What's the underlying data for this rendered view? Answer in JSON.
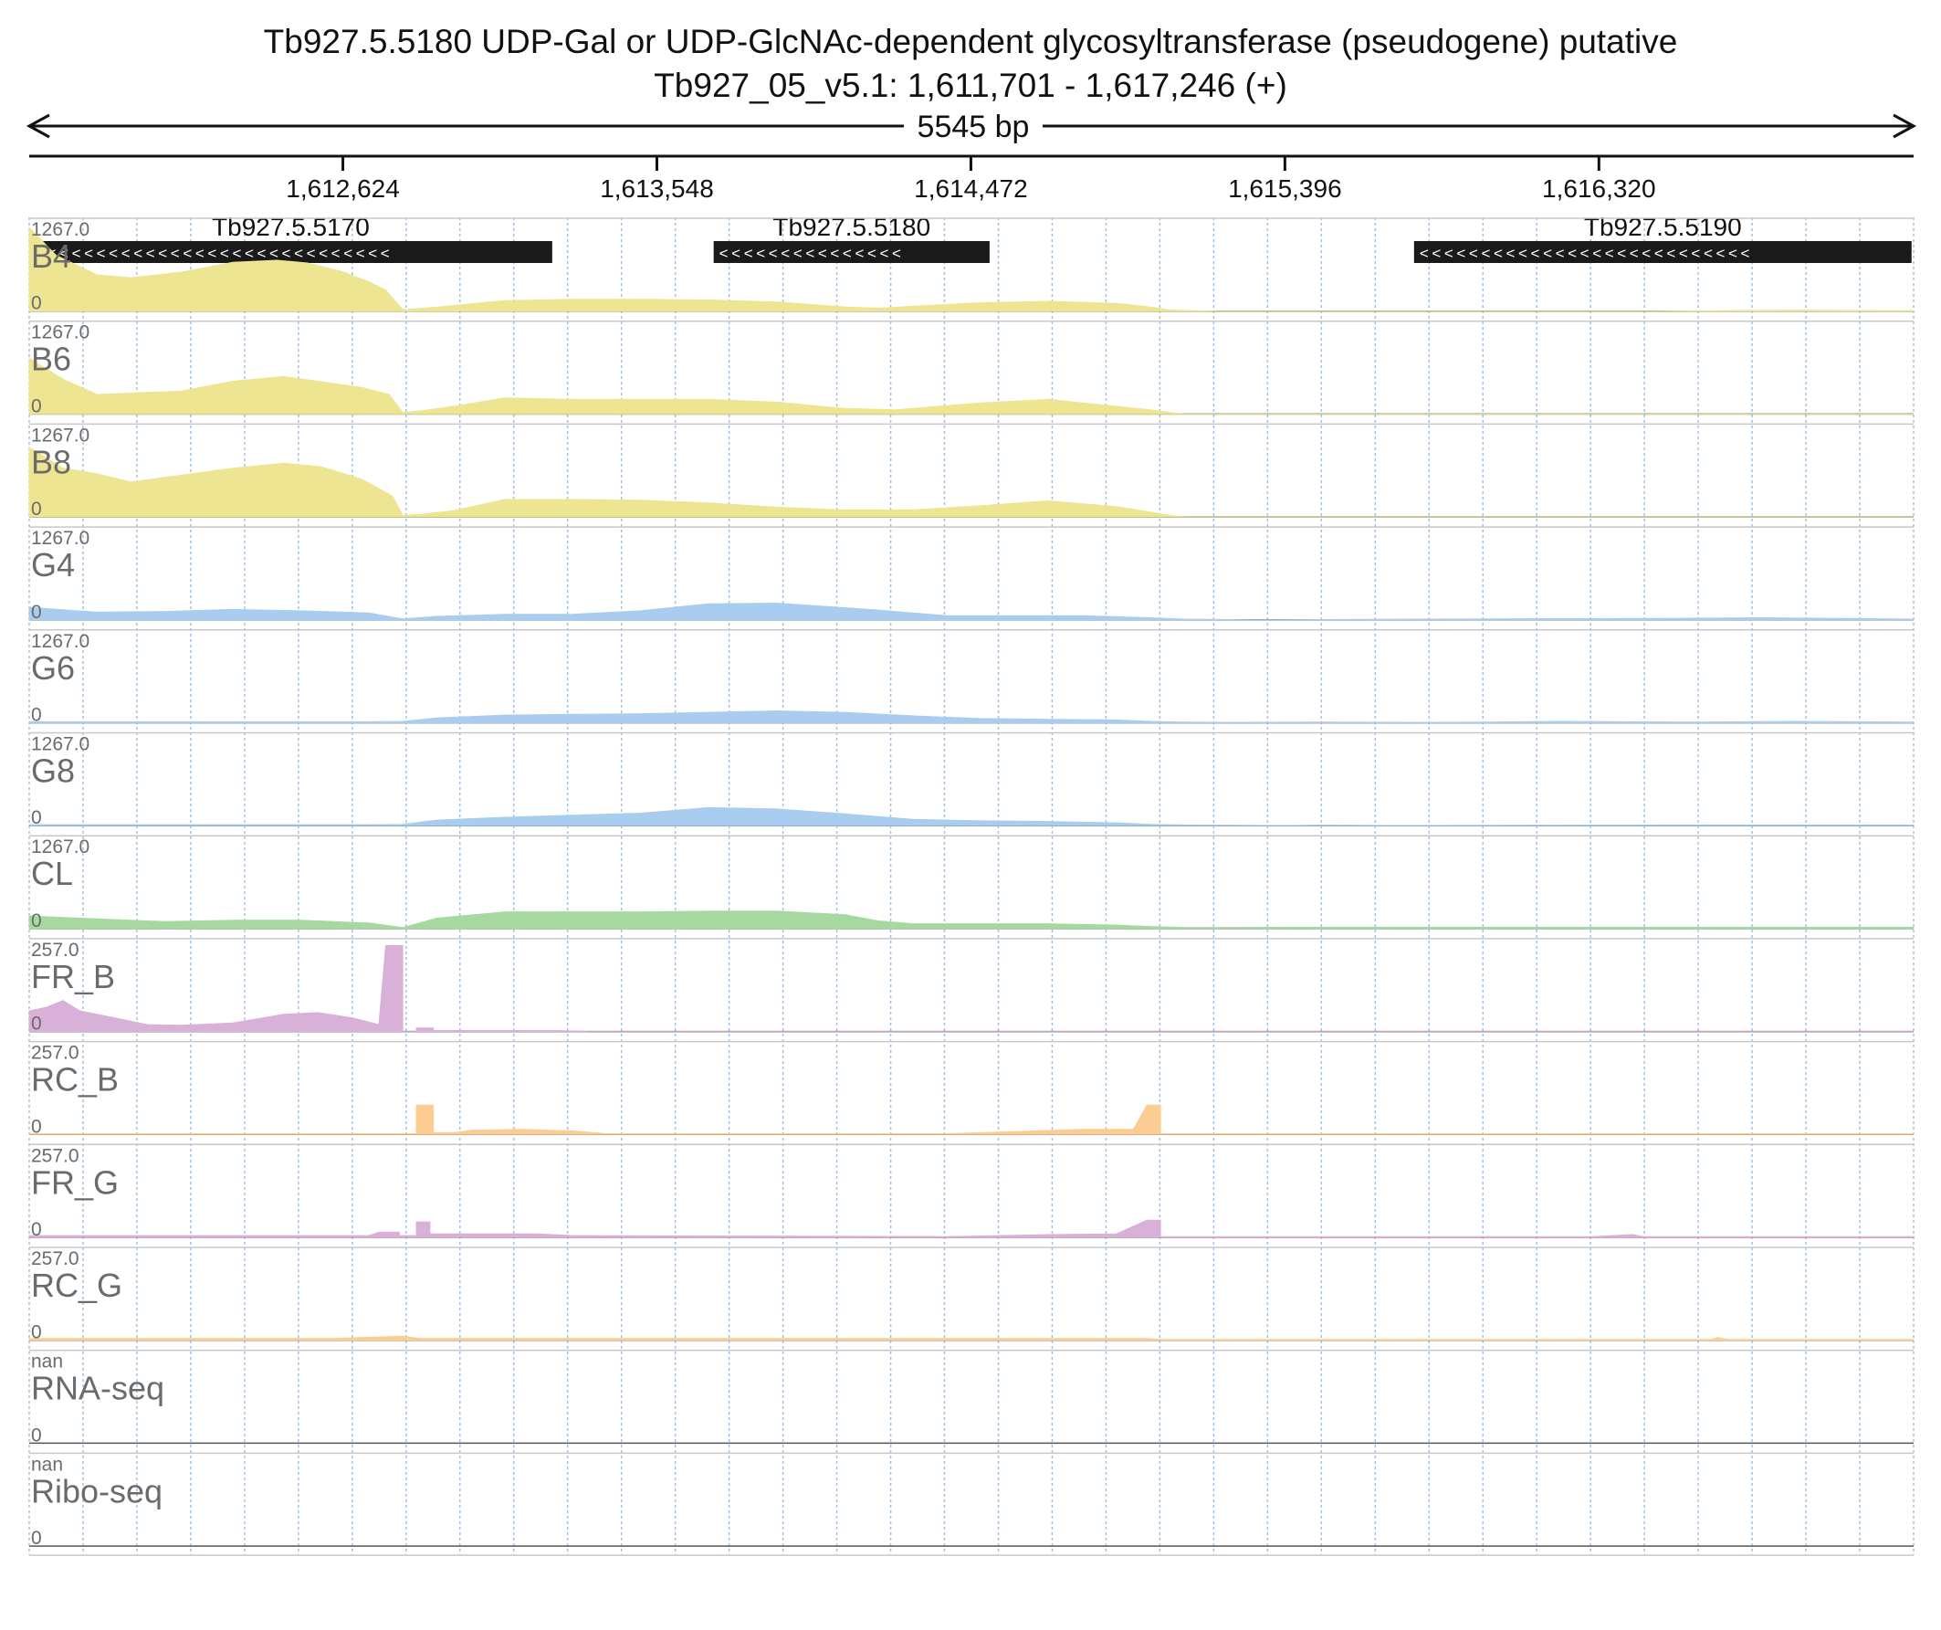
{
  "title": "Tb927.5.5180  UDP-Gal or UDP-GlcNAc-dependent glycosyltransferase (pseudogene)  putative",
  "subtitle": "Tb927_05_v5.1: 1,611,701 - 1,617,246 (+)",
  "span_label": "5545 bp",
  "colors": {
    "blood": "#ede591",
    "glucose": "#a9cdee",
    "cl": "#a6d9a0",
    "fr": "#d9b0d8",
    "rc": "#fccc92",
    "gene": "#1a1a1a",
    "grid": "#9fc3e6",
    "label": "#6b6b6b"
  },
  "chart_data": {
    "type": "area",
    "region": {
      "chrom": "Tb927_05_v5.1",
      "start": 1611701,
      "end": 1617246,
      "strand": "+"
    },
    "xlim": [
      1611701,
      1617246
    ],
    "ticks": [
      {
        "value": 1612624,
        "label": "1,612,624"
      },
      {
        "value": 1613548,
        "label": "1,613,548"
      },
      {
        "value": 1614472,
        "label": "1,614,472"
      },
      {
        "value": 1615396,
        "label": "1,615,396"
      },
      {
        "value": 1616320,
        "label": "1,616,320"
      }
    ],
    "genes": [
      {
        "name": "Tb927.5.5170",
        "start": 1611701,
        "end": 1613240,
        "strand": "-"
      },
      {
        "name": "Tb927.5.5180",
        "start": 1613715,
        "end": 1614527,
        "strand": "-"
      },
      {
        "name": "Tb927.5.5190",
        "start": 1615776,
        "end": 1617240,
        "strand": "-"
      }
    ],
    "tracks": [
      {
        "name": "B4",
        "max_label": "1267.0",
        "min_label": "0",
        "ymax": 1267,
        "color_key": "blood",
        "points": [
          [
            1611701,
            1200
          ],
          [
            1611780,
            800
          ],
          [
            1611900,
            520
          ],
          [
            1612000,
            480
          ],
          [
            1612150,
            560
          ],
          [
            1612300,
            700
          ],
          [
            1612430,
            730
          ],
          [
            1612520,
            690
          ],
          [
            1612620,
            570
          ],
          [
            1612700,
            420
          ],
          [
            1612750,
            300
          ],
          [
            1612800,
            20
          ],
          [
            1612860,
            40
          ],
          [
            1612950,
            80
          ],
          [
            1613100,
            150
          ],
          [
            1613300,
            170
          ],
          [
            1613500,
            170
          ],
          [
            1613700,
            160
          ],
          [
            1613900,
            130
          ],
          [
            1614100,
            60
          ],
          [
            1614200,
            40
          ],
          [
            1614300,
            70
          ],
          [
            1614500,
            120
          ],
          [
            1614700,
            140
          ],
          [
            1614900,
            110
          ],
          [
            1615000,
            60
          ],
          [
            1615050,
            20
          ],
          [
            1615090,
            10
          ],
          [
            1615200,
            0
          ],
          [
            1616500,
            0
          ],
          [
            1616900,
            15
          ],
          [
            1617246,
            5
          ]
        ]
      },
      {
        "name": "B6",
        "max_label": "1267.0",
        "min_label": "0",
        "ymax": 1267,
        "color_key": "blood",
        "points": [
          [
            1611701,
            800
          ],
          [
            1611800,
            500
          ],
          [
            1611900,
            280
          ],
          [
            1612000,
            300
          ],
          [
            1612150,
            330
          ],
          [
            1612300,
            470
          ],
          [
            1612450,
            540
          ],
          [
            1612550,
            470
          ],
          [
            1612680,
            380
          ],
          [
            1612760,
            280
          ],
          [
            1612800,
            20
          ],
          [
            1612860,
            50
          ],
          [
            1612950,
            110
          ],
          [
            1613100,
            230
          ],
          [
            1613300,
            210
          ],
          [
            1613500,
            210
          ],
          [
            1613700,
            210
          ],
          [
            1613900,
            170
          ],
          [
            1614100,
            80
          ],
          [
            1614250,
            60
          ],
          [
            1614500,
            160
          ],
          [
            1614700,
            210
          ],
          [
            1614900,
            110
          ],
          [
            1615000,
            60
          ],
          [
            1615060,
            20
          ],
          [
            1615100,
            0
          ],
          [
            1617246,
            0
          ]
        ]
      },
      {
        "name": "B8",
        "max_label": "1267.0",
        "min_label": "0",
        "ymax": 1267,
        "color_key": "blood",
        "points": [
          [
            1611701,
            1000
          ],
          [
            1611800,
            700
          ],
          [
            1611900,
            620
          ],
          [
            1612000,
            500
          ],
          [
            1612150,
            600
          ],
          [
            1612300,
            700
          ],
          [
            1612450,
            770
          ],
          [
            1612560,
            720
          ],
          [
            1612680,
            540
          ],
          [
            1612770,
            300
          ],
          [
            1612800,
            20
          ],
          [
            1612860,
            40
          ],
          [
            1612950,
            90
          ],
          [
            1613100,
            250
          ],
          [
            1613300,
            250
          ],
          [
            1613500,
            240
          ],
          [
            1613700,
            200
          ],
          [
            1613900,
            140
          ],
          [
            1614100,
            100
          ],
          [
            1614300,
            100
          ],
          [
            1614500,
            160
          ],
          [
            1614700,
            230
          ],
          [
            1614900,
            150
          ],
          [
            1615000,
            70
          ],
          [
            1615060,
            20
          ],
          [
            1615100,
            0
          ],
          [
            1617246,
            0
          ]
        ]
      },
      {
        "name": "G4",
        "max_label": "1267.0",
        "min_label": "0",
        "ymax": 1267,
        "color_key": "glucose",
        "points": [
          [
            1611701,
            180
          ],
          [
            1611900,
            110
          ],
          [
            1612100,
            120
          ],
          [
            1612300,
            150
          ],
          [
            1612500,
            130
          ],
          [
            1612700,
            100
          ],
          [
            1612800,
            15
          ],
          [
            1612900,
            50
          ],
          [
            1613100,
            80
          ],
          [
            1613300,
            80
          ],
          [
            1613500,
            130
          ],
          [
            1613700,
            230
          ],
          [
            1613900,
            240
          ],
          [
            1614050,
            190
          ],
          [
            1614200,
            140
          ],
          [
            1614400,
            60
          ],
          [
            1614600,
            60
          ],
          [
            1614800,
            60
          ],
          [
            1615000,
            30
          ],
          [
            1615100,
            10
          ],
          [
            1615300,
            0
          ],
          [
            1616000,
            15
          ],
          [
            1616500,
            20
          ],
          [
            1616800,
            30
          ],
          [
            1617246,
            10
          ]
        ]
      },
      {
        "name": "G6",
        "max_label": "1267.0",
        "min_label": "0",
        "ymax": 1267,
        "color_key": "glucose",
        "points": [
          [
            1611701,
            15
          ],
          [
            1612700,
            15
          ],
          [
            1612800,
            20
          ],
          [
            1612900,
            70
          ],
          [
            1613100,
            110
          ],
          [
            1613300,
            120
          ],
          [
            1613500,
            130
          ],
          [
            1613700,
            150
          ],
          [
            1613900,
            170
          ],
          [
            1614100,
            150
          ],
          [
            1614300,
            100
          ],
          [
            1614500,
            60
          ],
          [
            1614700,
            50
          ],
          [
            1614900,
            40
          ],
          [
            1615000,
            20
          ],
          [
            1615100,
            10
          ],
          [
            1615500,
            0
          ],
          [
            1616000,
            10
          ],
          [
            1616200,
            20
          ],
          [
            1616600,
            10
          ],
          [
            1616900,
            20
          ],
          [
            1617246,
            10
          ]
        ]
      },
      {
        "name": "G8",
        "max_label": "1267.0",
        "min_label": "0",
        "ymax": 1267,
        "color_key": "glucose",
        "points": [
          [
            1611701,
            15
          ],
          [
            1612700,
            15
          ],
          [
            1612800,
            20
          ],
          [
            1612900,
            80
          ],
          [
            1613100,
            120
          ],
          [
            1613300,
            150
          ],
          [
            1613500,
            180
          ],
          [
            1613700,
            260
          ],
          [
            1613900,
            240
          ],
          [
            1614100,
            170
          ],
          [
            1614300,
            90
          ],
          [
            1614500,
            70
          ],
          [
            1614700,
            60
          ],
          [
            1614900,
            40
          ],
          [
            1615000,
            20
          ],
          [
            1615100,
            10
          ],
          [
            1615500,
            0
          ],
          [
            1616500,
            10
          ],
          [
            1617246,
            10
          ]
        ]
      },
      {
        "name": "CL",
        "max_label": "1267.0",
        "min_label": "0",
        "ymax": 1267,
        "color_key": "cl",
        "points": [
          [
            1611701,
            180
          ],
          [
            1611900,
            140
          ],
          [
            1612100,
            100
          ],
          [
            1612300,
            120
          ],
          [
            1612500,
            120
          ],
          [
            1612700,
            80
          ],
          [
            1612800,
            15
          ],
          [
            1612900,
            150
          ],
          [
            1613100,
            240
          ],
          [
            1613300,
            240
          ],
          [
            1613500,
            240
          ],
          [
            1613700,
            250
          ],
          [
            1613900,
            250
          ],
          [
            1614100,
            200
          ],
          [
            1614200,
            110
          ],
          [
            1614300,
            70
          ],
          [
            1614500,
            70
          ],
          [
            1614700,
            70
          ],
          [
            1614900,
            50
          ],
          [
            1615000,
            30
          ],
          [
            1615100,
            15
          ],
          [
            1615500,
            20
          ],
          [
            1616500,
            20
          ],
          [
            1617246,
            20
          ]
        ]
      },
      {
        "name": "FR_B",
        "max_label": "257.0",
        "min_label": "0",
        "ymax": 257,
        "color_key": "fr",
        "points": [
          [
            1611701,
            60
          ],
          [
            1611750,
            70
          ],
          [
            1611800,
            90
          ],
          [
            1611850,
            60
          ],
          [
            1611950,
            40
          ],
          [
            1612050,
            20
          ],
          [
            1612150,
            18
          ],
          [
            1612300,
            25
          ],
          [
            1612450,
            50
          ],
          [
            1612550,
            55
          ],
          [
            1612650,
            40
          ],
          [
            1612730,
            20
          ],
          [
            1612750,
            250
          ],
          [
            1612800,
            250
          ],
          [
            1612800,
            0
          ],
          [
            1612840,
            0
          ],
          [
            1612840,
            10
          ],
          [
            1612890,
            10
          ],
          [
            1612890,
            3
          ],
          [
            1613250,
            3
          ],
          [
            1613350,
            0
          ],
          [
            1617246,
            0
          ]
        ]
      },
      {
        "name": "RC_B",
        "max_label": "257.0",
        "min_label": "0",
        "ymax": 257,
        "color_key": "rc",
        "points": [
          [
            1611701,
            2
          ],
          [
            1612840,
            2
          ],
          [
            1612840,
            85
          ],
          [
            1612890,
            85
          ],
          [
            1612890,
            5
          ],
          [
            1612950,
            5
          ],
          [
            1613000,
            12
          ],
          [
            1613150,
            15
          ],
          [
            1613300,
            10
          ],
          [
            1613400,
            2
          ],
          [
            1614400,
            2
          ],
          [
            1614600,
            8
          ],
          [
            1614800,
            15
          ],
          [
            1614950,
            15
          ],
          [
            1614990,
            85
          ],
          [
            1615030,
            85
          ],
          [
            1615030,
            2
          ],
          [
            1617246,
            2
          ]
        ]
      },
      {
        "name": "FR_G",
        "max_label": "257.0",
        "min_label": "0",
        "ymax": 257,
        "color_key": "fr",
        "points": [
          [
            1611701,
            5
          ],
          [
            1612700,
            5
          ],
          [
            1612730,
            15
          ],
          [
            1612790,
            15
          ],
          [
            1612790,
            5
          ],
          [
            1612840,
            5
          ],
          [
            1612840,
            45
          ],
          [
            1612880,
            45
          ],
          [
            1612880,
            10
          ],
          [
            1613100,
            10
          ],
          [
            1613200,
            10
          ],
          [
            1613300,
            5
          ],
          [
            1614400,
            2
          ],
          [
            1614700,
            8
          ],
          [
            1614900,
            10
          ],
          [
            1614990,
            50
          ],
          [
            1615030,
            50
          ],
          [
            1615030,
            2
          ],
          [
            1616300,
            2
          ],
          [
            1616420,
            8
          ],
          [
            1616450,
            2
          ],
          [
            1616600,
            2
          ],
          [
            1617246,
            2
          ]
        ]
      },
      {
        "name": "RC_G",
        "max_label": "257.0",
        "min_label": "0",
        "ymax": 257,
        "color_key": "rc",
        "points": [
          [
            1611701,
            5
          ],
          [
            1612600,
            5
          ],
          [
            1612800,
            12
          ],
          [
            1612850,
            5
          ],
          [
            1614990,
            5
          ],
          [
            1615030,
            2
          ],
          [
            1616650,
            2
          ],
          [
            1616670,
            8
          ],
          [
            1616700,
            2
          ],
          [
            1617246,
            2
          ]
        ]
      },
      {
        "name": "RNA-seq",
        "max_label": "nan",
        "min_label": "0",
        "ymax": null,
        "color_key": "rc",
        "points": []
      },
      {
        "name": "Ribo-seq",
        "max_label": "nan",
        "min_label": "0",
        "ymax": null,
        "color_key": "rc",
        "points": []
      }
    ]
  }
}
